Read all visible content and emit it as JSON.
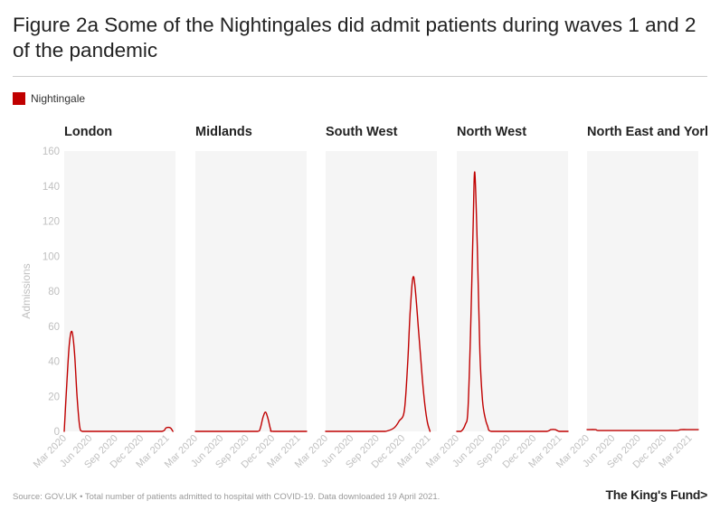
{
  "title": "Figure 2a Some of the Nightingales did admit patients during waves 1 and 2 of the pandemic",
  "legend_label": "Nightingale",
  "source": "Source: GOV.UK • Total number of patients admitted to hospital with COVID-19. Data downloaded 19 April 2021.",
  "logo": "The King's Fund>",
  "colors": {
    "series": "#c00000",
    "panel_bg": "#f5f5f5",
    "axis_text": "#c0c0c0"
  },
  "chart_data": {
    "type": "line",
    "ylabel": "Admissions",
    "ylim": [
      0,
      160
    ],
    "yticks": [
      0,
      20,
      40,
      60,
      80,
      100,
      120,
      140,
      160
    ],
    "xlim": [
      0,
      13
    ],
    "xticks": [
      {
        "x": 0,
        "label": "Mar 2020"
      },
      {
        "x": 3,
        "label": "Jun 2020"
      },
      {
        "x": 6,
        "label": "Sep 2020"
      },
      {
        "x": 9,
        "label": "Dec 2020"
      },
      {
        "x": 12,
        "label": "Mar 2021"
      }
    ],
    "x_unit": "months since March 2020",
    "panels": [
      {
        "name": "London",
        "x": [
          0,
          0.3,
          0.6,
          0.9,
          1.2,
          1.5,
          1.8,
          2.1,
          3,
          6,
          9,
          11.4,
          11.9,
          12.4,
          12.7
        ],
        "y": [
          0,
          27,
          50,
          57,
          45,
          20,
          3,
          0,
          0,
          0,
          0,
          0,
          2,
          2,
          0
        ]
      },
      {
        "name": "Midlands",
        "x": [
          0,
          3,
          6,
          7.3,
          7.6,
          7.9,
          8.2,
          8.5,
          8.8,
          9.1,
          12,
          13
        ],
        "y": [
          0,
          0,
          0,
          0,
          2,
          8,
          11,
          7,
          1,
          0,
          0,
          0
        ]
      },
      {
        "name": "South West",
        "x": [
          0,
          3,
          6,
          7,
          8,
          8.6,
          9.2,
          9.6,
          9.9,
          10.3,
          10.9,
          11.3,
          11.6,
          11.9,
          12.2
        ],
        "y": [
          0,
          0,
          0,
          0,
          2,
          6,
          12,
          40,
          70,
          88,
          55,
          30,
          15,
          5,
          0
        ]
      },
      {
        "name": "North West",
        "x": [
          0,
          0.5,
          1,
          1.3,
          1.6,
          1.9,
          2.1,
          2.4,
          2.7,
          3.0,
          3.3,
          3.6,
          4,
          6,
          9,
          10.5,
          11,
          11.5,
          12,
          13
        ],
        "y": [
          0,
          0,
          4,
          12,
          55,
          115,
          148,
          105,
          45,
          18,
          8,
          3,
          0,
          0,
          0,
          0,
          1,
          1,
          0,
          0
        ]
      },
      {
        "name": "North East and Yorkshire",
        "x": [
          0,
          1,
          1.3,
          3,
          6,
          9,
          10.5,
          11,
          12,
          13
        ],
        "y": [
          1,
          1,
          0.5,
          0.5,
          0.5,
          0.5,
          0.5,
          1,
          1,
          1
        ]
      }
    ]
  }
}
